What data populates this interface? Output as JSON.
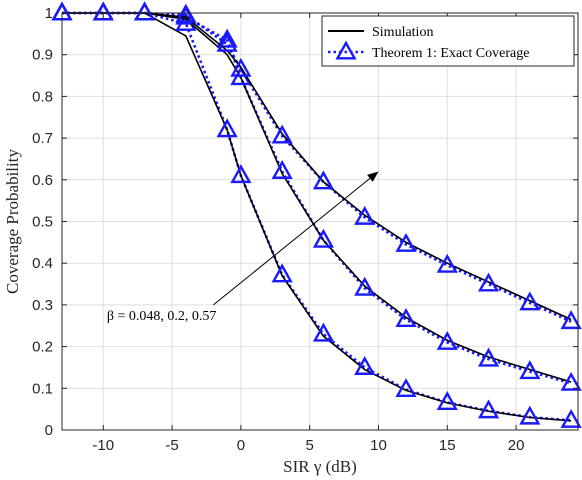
{
  "chart_data": {
    "type": "line",
    "xlabel": "SIR γ (dB)",
    "ylabel": "Coverage Probability",
    "xlim": [
      -13,
      24.5
    ],
    "ylim": [
      0,
      1
    ],
    "xticks": [
      -10,
      -5,
      0,
      5,
      10,
      15,
      20
    ],
    "yticks": [
      0,
      0.1,
      0.2,
      0.3,
      0.4,
      0.5,
      0.6,
      0.7,
      0.8,
      0.9,
      1
    ],
    "grid": true,
    "legend_position": "top-right",
    "legend": [
      {
        "label": "Simulation",
        "color": "#000000",
        "style": "solid",
        "marker": "none"
      },
      {
        "label": "Theorem 1: Exact Coverage",
        "color": "#1a1aff",
        "style": "dotted",
        "marker": "triangle"
      }
    ],
    "annotation": {
      "text": "β = 0.048, 0.2, 0.57",
      "arrow_from": [
        -2,
        0.3
      ],
      "arrow_to": [
        10,
        0.62
      ]
    },
    "colors": {
      "simulation": "#000000",
      "theorem": "#1a1aff",
      "grid": "#dfdfdf",
      "axis": "#262626"
    },
    "series": [
      {
        "group": "β = 0.048",
        "simulation": {
          "x": [
            -13,
            -10,
            -7,
            -4,
            -1,
            0,
            3,
            6,
            9,
            12,
            15,
            18,
            21,
            24
          ],
          "y": [
            1.0,
            1.0,
            1.0,
            0.945,
            0.72,
            0.61,
            0.37,
            0.225,
            0.145,
            0.095,
            0.065,
            0.045,
            0.03,
            0.022
          ]
        },
        "theorem": {
          "x": [
            -13,
            -10,
            -7,
            -4,
            -1,
            0,
            3,
            6,
            9,
            12,
            15,
            18,
            21,
            24
          ],
          "y": [
            1.0,
            1.0,
            1.0,
            0.975,
            0.72,
            0.61,
            0.372,
            0.23,
            0.15,
            0.097,
            0.066,
            0.046,
            0.031,
            0.023
          ]
        }
      },
      {
        "group": "β = 0.2",
        "simulation": {
          "x": [
            -13,
            -10,
            -7,
            -4,
            -1,
            0,
            3,
            6,
            9,
            12,
            15,
            18,
            21,
            24
          ],
          "y": [
            1.0,
            1.0,
            1.0,
            0.985,
            0.9,
            0.845,
            0.615,
            0.455,
            0.345,
            0.27,
            0.215,
            0.175,
            0.145,
            0.115
          ]
        },
        "theorem": {
          "x": [
            -13,
            -10,
            -7,
            -4,
            -1,
            0,
            3,
            6,
            9,
            12,
            15,
            18,
            21,
            24
          ],
          "y": [
            1.0,
            1.0,
            1.0,
            0.99,
            0.935,
            0.845,
            0.62,
            0.455,
            0.34,
            0.265,
            0.21,
            0.17,
            0.14,
            0.112
          ]
        }
      },
      {
        "group": "β = 0.57",
        "simulation": {
          "x": [
            -13,
            -10,
            -7,
            -4,
            -1,
            0,
            3,
            6,
            9,
            12,
            15,
            18,
            21,
            24
          ],
          "y": [
            1.0,
            1.0,
            1.0,
            0.99,
            0.91,
            0.87,
            0.71,
            0.595,
            0.515,
            0.45,
            0.4,
            0.355,
            0.31,
            0.265
          ]
        },
        "theorem": {
          "x": [
            -13,
            -10,
            -7,
            -4,
            -1,
            0,
            3,
            6,
            9,
            12,
            15,
            18,
            21,
            24
          ],
          "y": [
            1.0,
            1.0,
            1.0,
            0.995,
            0.925,
            0.865,
            0.705,
            0.595,
            0.51,
            0.445,
            0.395,
            0.35,
            0.305,
            0.26
          ]
        }
      }
    ]
  }
}
